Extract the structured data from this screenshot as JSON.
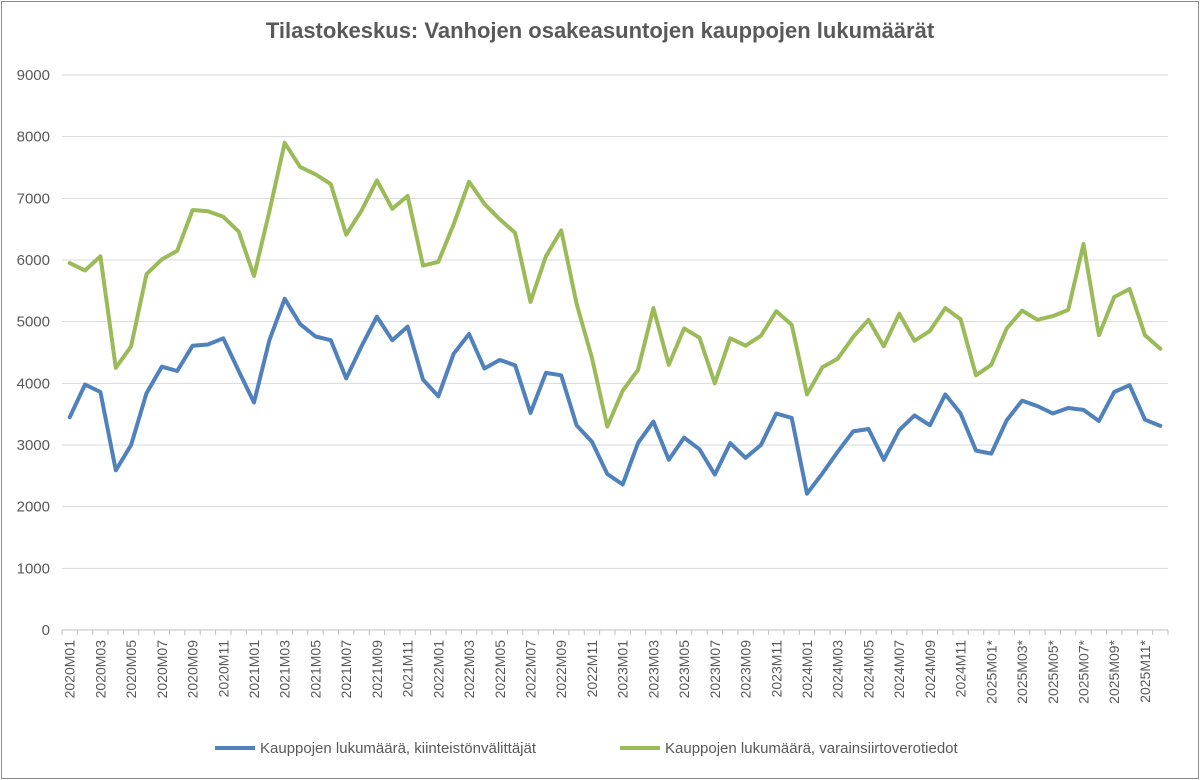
{
  "chart_data": {
    "type": "line",
    "title": "Tilastokeskus: Vanhojen osakeasuntojen kauppojen lukumäärät",
    "xlabel": "",
    "ylabel": "",
    "ylim": [
      0,
      9000
    ],
    "yticks": [
      0,
      1000,
      2000,
      3000,
      4000,
      5000,
      6000,
      7000,
      8000,
      9000
    ],
    "grid": true,
    "legend_position": "bottom",
    "categories": [
      "2020M01",
      "2020M02",
      "2020M03",
      "2020M04",
      "2020M05",
      "2020M06",
      "2020M07",
      "2020M08",
      "2020M09",
      "2020M10",
      "2020M11",
      "2020M12",
      "2021M01",
      "2021M02",
      "2021M03",
      "2021M04",
      "2021M05",
      "2021M06",
      "2021M07",
      "2021M08",
      "2021M09",
      "2021M10",
      "2021M11",
      "2021M12",
      "2022M01",
      "2022M02",
      "2022M03",
      "2022M04",
      "2022M05",
      "2022M06",
      "2022M07",
      "2022M08",
      "2022M09",
      "2022M10",
      "2022M11",
      "2022M12",
      "2023M01",
      "2023M02",
      "2023M03",
      "2023M04",
      "2023M05",
      "2023M06",
      "2023M07",
      "2023M08",
      "2023M09",
      "2023M10",
      "2023M11",
      "2023M12",
      "2024M01",
      "2024M02",
      "2024M03",
      "2024M04",
      "2024M05",
      "2024M06",
      "2024M07",
      "2024M08",
      "2024M09",
      "2024M10",
      "2024M11",
      "2024M12",
      "2025M01*",
      "2025M02*",
      "2025M03*",
      "2025M04*",
      "2025M05*",
      "2025M06*",
      "2025M07*",
      "2025M08*",
      "2025M09*",
      "2025M10*",
      "2025M11*",
      "2025M12*"
    ],
    "tick_labels": [
      "2020M01",
      "2020M03",
      "2020M05",
      "2020M07",
      "2020M09",
      "2020M11",
      "2021M01",
      "2021M03",
      "2021M05",
      "2021M07",
      "2021M09",
      "2021M11",
      "2022M01",
      "2022M03",
      "2022M05",
      "2022M07",
      "2022M09",
      "2022M11",
      "2023M01",
      "2023M03",
      "2023M05",
      "2023M07",
      "2023M09",
      "2023M11",
      "2024M01",
      "2024M03",
      "2024M05",
      "2024M07",
      "2024M09",
      "2024M11",
      "2025M01*",
      "2025M03*",
      "2025M05*",
      "2025M07*",
      "2025M09*",
      "2025M11*"
    ],
    "series": [
      {
        "name": "Kauppojen lukumäärä, kiinteistönvälittäjät",
        "color": "#4f81bd",
        "values": [
          3450,
          3980,
          3860,
          2590,
          3000,
          3840,
          4270,
          4200,
          4610,
          4630,
          4730,
          4200,
          3690,
          4700,
          5370,
          4960,
          4760,
          4700,
          4080,
          4600,
          5080,
          4700,
          4920,
          4060,
          3790,
          4480,
          4800,
          4240,
          4380,
          4290,
          3520,
          4170,
          4130,
          3320,
          3050,
          2530,
          2360,
          3030,
          3380,
          2760,
          3120,
          2930,
          2520,
          3030,
          2790,
          3000,
          3510,
          3440,
          2210,
          2540,
          2890,
          3220,
          3260,
          2760,
          3240,
          3480,
          3320,
          3820,
          3510,
          2910,
          2860,
          3400,
          3720,
          3630,
          3510,
          3600,
          3570,
          3390,
          3860,
          3970,
          3410,
          3310
        ]
      },
      {
        "name": "Kauppojen lukumäärä, varainsiirtoverotiedot",
        "color": "#9bbb59",
        "values": [
          5950,
          5830,
          6060,
          4250,
          4600,
          5770,
          6010,
          6150,
          6810,
          6790,
          6700,
          6460,
          5740,
          6790,
          7900,
          7510,
          7390,
          7230,
          6410,
          6800,
          7290,
          6830,
          7040,
          5910,
          5970,
          6580,
          7270,
          6910,
          6660,
          6440,
          5320,
          6060,
          6480,
          5290,
          4410,
          3300,
          3880,
          4220,
          5220,
          4300,
          4890,
          4740,
          4000,
          4730,
          4610,
          4770,
          5170,
          4950,
          3820,
          4260,
          4400,
          4750,
          5030,
          4600,
          5130,
          4690,
          4850,
          5220,
          5040,
          4130,
          4300,
          4890,
          5180,
          5030,
          5090,
          5190,
          6260,
          4780,
          5400,
          5530,
          4780,
          4560
        ]
      }
    ]
  }
}
